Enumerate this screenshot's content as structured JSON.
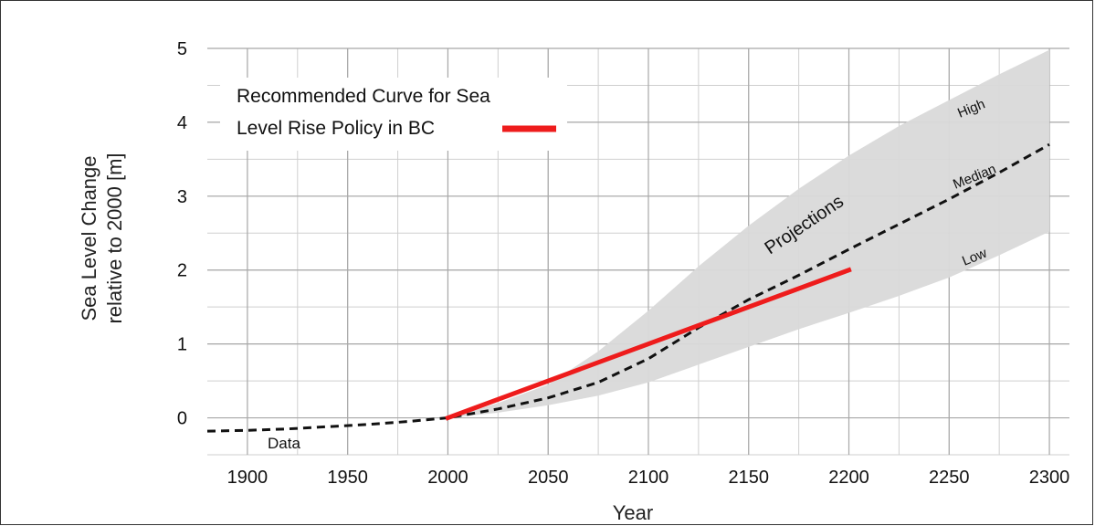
{
  "chart_data": {
    "type": "line",
    "xlabel": "Year",
    "ylabel_lines": [
      "Sea Level Change",
      "relative to 2000 [m]"
    ],
    "xlim": [
      1880,
      2310
    ],
    "ylim": [
      -0.5,
      5
    ],
    "x_ticks": [
      "1900",
      "1950",
      "2000",
      "2050",
      "2100",
      "2150",
      "2200",
      "2250",
      "2300"
    ],
    "y_ticks": [
      "0",
      "1",
      "2",
      "3",
      "4",
      "5"
    ],
    "grid": true,
    "legend": {
      "position": "top-left",
      "lines": [
        "Recommended Curve for Sea",
        "Level Rise Policy in BC"
      ],
      "color": "#ee1c1c"
    },
    "series": [
      {
        "name": "Recommended Curve for Sea Level Rise Policy in BC",
        "color": "#ee1c1c",
        "style": "solid",
        "x": [
          2000,
          2200
        ],
        "y": [
          0.0,
          2.0
        ]
      },
      {
        "name": "Median",
        "color": "#111111",
        "style": "dashed",
        "x": [
          1880,
          1900,
          1920,
          1940,
          1960,
          1980,
          2000,
          2025,
          2050,
          2075,
          2100,
          2125,
          2150,
          2175,
          2200,
          2225,
          2250,
          2275,
          2300
        ],
        "y": [
          -0.18,
          -0.17,
          -0.15,
          -0.12,
          -0.09,
          -0.05,
          0.0,
          0.12,
          0.27,
          0.48,
          0.8,
          1.22,
          1.6,
          1.93,
          2.28,
          2.62,
          2.96,
          3.32,
          3.7
        ]
      }
    ],
    "band": {
      "name": "Projections",
      "color": "#d9d9d9",
      "x": [
        2000,
        2025,
        2050,
        2075,
        2100,
        2125,
        2150,
        2175,
        2200,
        2225,
        2250,
        2275,
        2300
      ],
      "low": [
        0.0,
        0.07,
        0.17,
        0.3,
        0.48,
        0.72,
        0.96,
        1.2,
        1.42,
        1.65,
        1.9,
        2.2,
        2.52
      ],
      "high": [
        0.0,
        0.2,
        0.45,
        0.9,
        1.45,
        2.05,
        2.6,
        3.1,
        3.55,
        3.95,
        4.3,
        4.65,
        4.98
      ]
    },
    "annotations": {
      "data": "Data",
      "projections": "Projections",
      "high": "High",
      "median": "Median",
      "low": "Low"
    }
  }
}
